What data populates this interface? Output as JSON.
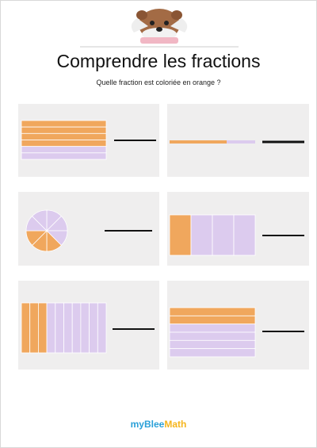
{
  "header": {
    "title": "Comprendre les fractions",
    "instruction": "Quelle fraction est coloriée en orange ?"
  },
  "footer": {
    "brand": "myBlee",
    "subject": "Math"
  }
}
